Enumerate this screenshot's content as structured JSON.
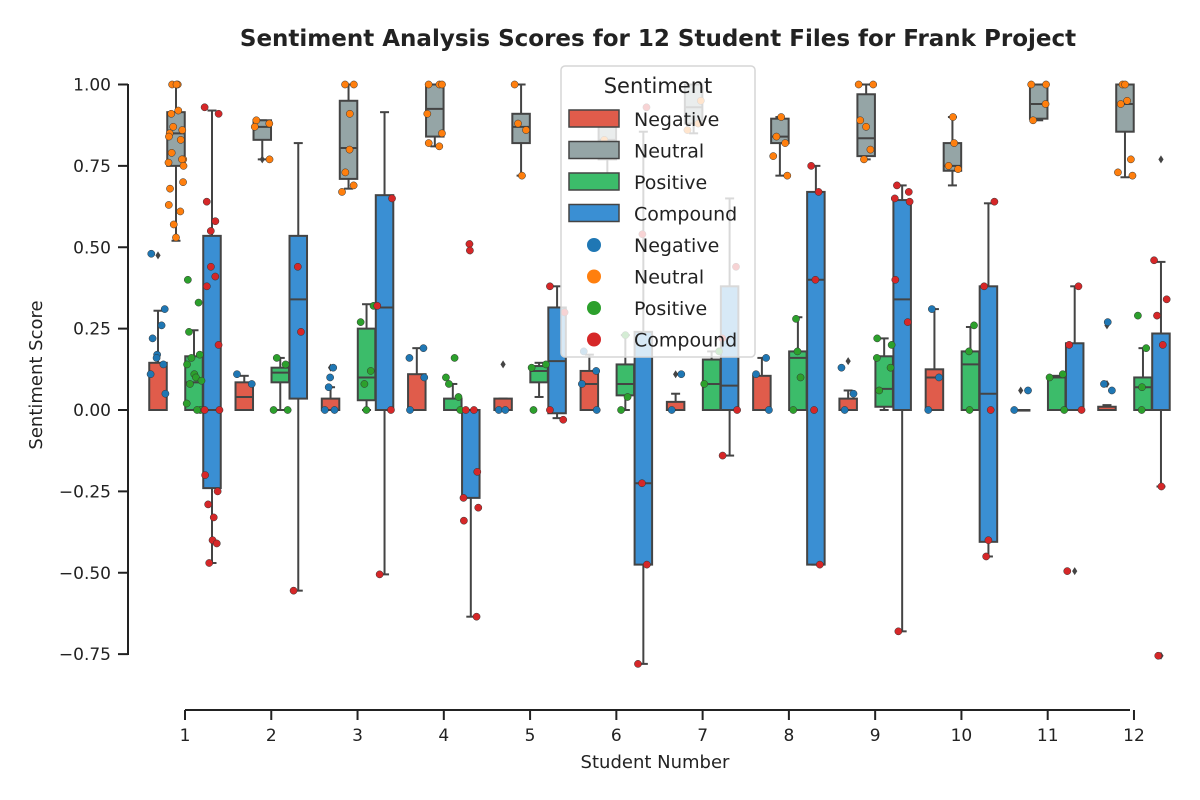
{
  "chart_data": {
    "type": "box",
    "title": "Sentiment Analysis Scores for 12 Student Files for Frank Project",
    "xlabel": "Student Number",
    "ylabel": "Sentiment Score",
    "categories": [
      "1",
      "2",
      "3",
      "4",
      "5",
      "6",
      "7",
      "8",
      "9",
      "10",
      "11",
      "12"
    ],
    "yticks": [
      "1.00",
      "0.75",
      "0.50",
      "0.25",
      "0.00",
      "−0.25",
      "−0.50",
      "−0.75"
    ],
    "ytick_values": [
      1.0,
      0.75,
      0.5,
      0.25,
      0.0,
      -0.25,
      -0.5,
      -0.75
    ],
    "ylim": [
      -0.92,
      1.08
    ],
    "grid": false,
    "legend": {
      "title": "Sentiment",
      "position": "top-center",
      "box_entries": [
        "Negative",
        "Neutral",
        "Positive",
        "Compound"
      ],
      "point_entries": [
        "Negative",
        "Neutral",
        "Positive",
        "Compound"
      ]
    },
    "box_colors": {
      "Negative": "#e05c4b",
      "Neutral": "#95a5a6",
      "Positive": "#3cbc6a",
      "Compound": "#3a8fd3"
    },
    "point_colors": {
      "Negative": "#1f77b4",
      "Neutral": "#ff7f0e",
      "Positive": "#2ca02c",
      "Compound": "#d62728"
    },
    "series": [
      {
        "name": "Negative",
        "boxes": [
          {
            "q1": 0,
            "med": 0,
            "q3": 0.145,
            "lo": 0,
            "hi": 0.305,
            "out": [
              0.475
            ]
          },
          {
            "q1": 0,
            "med": 0.04,
            "q3": 0.085,
            "lo": 0,
            "hi": 0.105,
            "out": []
          },
          {
            "q1": 0,
            "med": 0,
            "q3": 0.035,
            "lo": 0,
            "hi": 0.07,
            "out": [
              0.13
            ]
          },
          {
            "q1": 0,
            "med": 0,
            "q3": 0.11,
            "lo": 0,
            "hi": 0.19,
            "out": []
          },
          {
            "q1": 0,
            "med": 0,
            "q3": 0.035,
            "lo": 0,
            "hi": 0.035,
            "out": [
              0.14
            ]
          },
          {
            "q1": 0,
            "med": 0.08,
            "q3": 0.12,
            "lo": 0,
            "hi": 0.17,
            "out": []
          },
          {
            "q1": 0,
            "med": 0,
            "q3": 0.025,
            "lo": 0,
            "hi": 0.05,
            "out": [
              0.11
            ]
          },
          {
            "q1": 0,
            "med": 0,
            "q3": 0.105,
            "lo": 0,
            "hi": 0.16,
            "out": []
          },
          {
            "q1": 0,
            "med": 0,
            "q3": 0.035,
            "lo": 0,
            "hi": 0.06,
            "out": [
              0.15
            ]
          },
          {
            "q1": 0,
            "med": 0.1,
            "q3": 0.125,
            "lo": 0,
            "hi": 0.31,
            "out": []
          },
          {
            "q1": 0,
            "med": 0,
            "q3": 0,
            "lo": 0,
            "hi": 0,
            "out": [
              0.06
            ]
          },
          {
            "q1": 0,
            "med": 0,
            "q3": 0.01,
            "lo": 0,
            "hi": 0.015,
            "out": [
              0.26,
              0.08
            ]
          }
        ]
      },
      {
        "name": "Neutral",
        "boxes": [
          {
            "q1": 0.75,
            "med": 0.85,
            "q3": 0.915,
            "lo": 0.52,
            "hi": 1.0,
            "out": []
          },
          {
            "q1": 0.83,
            "med": 0.87,
            "q3": 0.89,
            "lo": 0.77,
            "hi": 0.89,
            "out": [
              0.77
            ]
          },
          {
            "q1": 0.71,
            "med": 0.805,
            "q3": 0.95,
            "lo": 0.68,
            "hi": 1.0,
            "out": []
          },
          {
            "q1": 0.84,
            "med": 0.925,
            "q3": 1.0,
            "lo": 0.81,
            "hi": 1.0,
            "out": []
          },
          {
            "q1": 0.82,
            "med": 0.87,
            "q3": 0.91,
            "lo": 0.72,
            "hi": 1.0,
            "out": []
          },
          {
            "q1": 0.77,
            "med": 0.83,
            "q3": 0.87,
            "lo": 0.72,
            "hi": 0.9,
            "out": []
          },
          {
            "q1": 0.88,
            "med": 0.93,
            "q3": 1.0,
            "lo": 0.85,
            "hi": 1.0,
            "out": []
          },
          {
            "q1": 0.82,
            "med": 0.84,
            "q3": 0.895,
            "lo": 0.72,
            "hi": 0.9,
            "out": []
          },
          {
            "q1": 0.78,
            "med": 0.835,
            "q3": 0.97,
            "lo": 0.77,
            "hi": 1.0,
            "out": []
          },
          {
            "q1": 0.735,
            "med": 0.75,
            "q3": 0.82,
            "lo": 0.69,
            "hi": 0.9,
            "out": []
          },
          {
            "q1": 0.895,
            "med": 0.94,
            "q3": 1.0,
            "lo": 0.89,
            "hi": 1.0,
            "out": []
          },
          {
            "q1": 0.855,
            "med": 0.94,
            "q3": 1.0,
            "lo": 0.715,
            "hi": 1.0,
            "out": []
          }
        ]
      },
      {
        "name": "Positive",
        "boxes": [
          {
            "q1": 0,
            "med": 0.085,
            "q3": 0.165,
            "lo": 0,
            "hi": 0.245,
            "out": []
          },
          {
            "q1": 0.085,
            "med": 0.115,
            "q3": 0.13,
            "lo": 0,
            "hi": 0.16,
            "out": []
          },
          {
            "q1": 0.03,
            "med": 0.1,
            "q3": 0.25,
            "lo": 0,
            "hi": 0.325,
            "out": []
          },
          {
            "q1": 0,
            "med": 0,
            "q3": 0.035,
            "lo": 0,
            "hi": 0.08,
            "out": []
          },
          {
            "q1": 0.085,
            "med": 0.12,
            "q3": 0.135,
            "lo": 0.04,
            "hi": 0.145,
            "out": []
          },
          {
            "q1": 0.045,
            "med": 0.08,
            "q3": 0.14,
            "lo": 0,
            "hi": 0.23,
            "out": []
          },
          {
            "q1": 0,
            "med": 0.08,
            "q3": 0.155,
            "lo": 0,
            "hi": 0.18,
            "out": []
          },
          {
            "q1": 0,
            "med": 0.16,
            "q3": 0.18,
            "lo": 0,
            "hi": 0.285,
            "out": []
          },
          {
            "q1": 0.01,
            "med": 0.065,
            "q3": 0.165,
            "lo": 0,
            "hi": 0.22,
            "out": []
          },
          {
            "q1": 0,
            "med": 0.14,
            "q3": 0.18,
            "lo": 0,
            "hi": 0.255,
            "out": []
          },
          {
            "q1": 0,
            "med": 0,
            "q3": 0.1,
            "lo": 0,
            "hi": 0.105,
            "out": []
          },
          {
            "q1": 0,
            "med": 0.07,
            "q3": 0.1,
            "lo": 0,
            "hi": 0.19,
            "out": []
          }
        ]
      },
      {
        "name": "Compound",
        "boxes": [
          {
            "q1": -0.24,
            "med": 0,
            "q3": 0.535,
            "lo": -0.47,
            "hi": 0.92,
            "out": []
          },
          {
            "q1": 0.035,
            "med": 0.34,
            "q3": 0.535,
            "lo": -0.555,
            "hi": 0.82,
            "out": []
          },
          {
            "q1": 0,
            "med": 0.315,
            "q3": 0.66,
            "lo": -0.505,
            "hi": 0.915,
            "out": []
          },
          {
            "q1": -0.27,
            "med": 0,
            "q3": 0,
            "lo": -0.635,
            "hi": 0,
            "out": [
              0.51,
              0.49
            ]
          },
          {
            "q1": -0.01,
            "med": 0.15,
            "q3": 0.315,
            "lo": -0.025,
            "hi": 0.38,
            "out": []
          },
          {
            "q1": -0.475,
            "med": -0.225,
            "q3": 0.24,
            "lo": -0.78,
            "hi": 0.855,
            "out": []
          },
          {
            "q1": 0,
            "med": 0.075,
            "q3": 0.38,
            "lo": -0.14,
            "hi": 0.65,
            "out": []
          },
          {
            "q1": -0.475,
            "med": 0.4,
            "q3": 0.67,
            "lo": -0.475,
            "hi": 0.75,
            "out": []
          },
          {
            "q1": 0,
            "med": 0.34,
            "q3": 0.645,
            "lo": -0.68,
            "hi": 0.69,
            "out": []
          },
          {
            "q1": -0.405,
            "med": 0.05,
            "q3": 0.38,
            "lo": -0.45,
            "hi": 0.635,
            "out": []
          },
          {
            "q1": 0,
            "med": 0,
            "q3": 0.205,
            "lo": 0,
            "hi": 0.38,
            "out": [
              -0.495
            ]
          },
          {
            "q1": 0,
            "med": 0,
            "q3": 0.235,
            "lo": -0.235,
            "hi": 0.455,
            "out": [
              0.77,
              -0.755
            ]
          }
        ]
      }
    ],
    "points": [
      {
        "cat": 0,
        "series": "Negative",
        "values": [
          0.17,
          0.16,
          0.26,
          0.22,
          0.31,
          0.11,
          0.05,
          0.48,
          0.14
        ]
      },
      {
        "cat": 0,
        "series": "Neutral",
        "values": [
          1.0,
          1.0,
          1.0,
          0.87,
          0.83,
          0.85,
          0.77,
          0.76,
          0.7,
          0.68,
          0.61,
          0.57,
          0.53,
          0.92,
          0.79,
          0.77,
          0.84,
          0.75,
          0.63,
          0.86,
          0.91
        ]
      },
      {
        "cat": 0,
        "series": "Positive",
        "values": [
          0.4,
          0.33,
          0.16,
          0.11,
          0.1,
          0.08,
          0.17,
          0.14,
          0.09,
          0.02,
          0.0,
          0.24,
          0.0
        ]
      },
      {
        "cat": 0,
        "series": "Compound",
        "values": [
          0.93,
          0.91,
          0.64,
          0.58,
          0.55,
          0.44,
          0.41,
          0.38,
          0.2,
          0.0,
          0.0,
          -0.2,
          -0.25,
          -0.29,
          -0.33,
          -0.4,
          -0.47,
          -0.41
        ]
      },
      {
        "cat": 1,
        "series": "Negative",
        "values": [
          0.11,
          0.08
        ]
      },
      {
        "cat": 1,
        "series": "Neutral",
        "values": [
          0.89,
          0.88,
          0.87,
          0.77
        ]
      },
      {
        "cat": 1,
        "series": "Positive",
        "values": [
          0.16,
          0.14,
          0.0,
          0.0
        ]
      },
      {
        "cat": 1,
        "series": "Compound",
        "values": [
          0.44,
          0.24,
          -0.555
        ]
      },
      {
        "cat": 2,
        "series": "Negative",
        "values": [
          0.13,
          0.1,
          0.07,
          0.0,
          0.0
        ]
      },
      {
        "cat": 2,
        "series": "Neutral",
        "values": [
          1.0,
          1.0,
          0.91,
          0.8,
          0.73,
          0.69,
          0.67
        ]
      },
      {
        "cat": 2,
        "series": "Positive",
        "values": [
          0.32,
          0.27,
          0.12,
          0.08,
          0.0
        ]
      },
      {
        "cat": 2,
        "series": "Compound",
        "values": [
          0.65,
          0.32,
          0.0,
          -0.505
        ]
      },
      {
        "cat": 3,
        "series": "Negative",
        "values": [
          0.19,
          0.16,
          0.1,
          0.0
        ]
      },
      {
        "cat": 3,
        "series": "Neutral",
        "values": [
          1.0,
          1.0,
          1.0,
          0.91,
          0.85,
          0.82,
          0.81
        ]
      },
      {
        "cat": 3,
        "series": "Positive",
        "values": [
          0.16,
          0.08,
          0.04,
          0.1,
          0.0
        ]
      },
      {
        "cat": 3,
        "series": "Compound",
        "values": [
          0.51,
          0.49,
          0.0,
          0.0,
          -0.19,
          -0.27,
          -0.3,
          -0.34,
          -0.635
        ]
      },
      {
        "cat": 4,
        "series": "Negative",
        "values": [
          0.0,
          0.0
        ]
      },
      {
        "cat": 4,
        "series": "Neutral",
        "values": [
          1.0,
          0.86,
          0.88,
          0.72
        ]
      },
      {
        "cat": 4,
        "series": "Positive",
        "values": [
          0.13,
          0.14,
          0.0
        ]
      },
      {
        "cat": 4,
        "series": "Compound",
        "values": [
          0.38,
          0.3,
          0.0,
          -0.03
        ]
      },
      {
        "cat": 5,
        "series": "Negative",
        "values": [
          0.18,
          0.12,
          0.08,
          0.0
        ]
      },
      {
        "cat": 5,
        "series": "Neutral",
        "values": [
          0.83,
          0.78
        ]
      },
      {
        "cat": 5,
        "series": "Positive",
        "values": [
          0.23,
          0.04,
          0.0
        ]
      },
      {
        "cat": 5,
        "series": "Compound",
        "values": [
          0.93,
          0.54,
          -0.225,
          -0.475,
          -0.78
        ]
      },
      {
        "cat": 6,
        "series": "Negative",
        "values": [
          0.11,
          0.0
        ]
      },
      {
        "cat": 6,
        "series": "Neutral",
        "values": [
          0.95,
          0.86,
          0.88
        ]
      },
      {
        "cat": 6,
        "series": "Positive",
        "values": [
          0.18,
          0.08
        ]
      },
      {
        "cat": 6,
        "series": "Compound",
        "values": [
          0.44,
          0.22,
          0.0,
          -0.14
        ]
      },
      {
        "cat": 7,
        "series": "Negative",
        "values": [
          0.16,
          0.11,
          0.0
        ]
      },
      {
        "cat": 7,
        "series": "Neutral",
        "values": [
          0.9,
          0.84,
          0.82,
          0.78,
          0.72
        ]
      },
      {
        "cat": 7,
        "series": "Positive",
        "values": [
          0.28,
          0.18,
          0.1,
          0.0
        ]
      },
      {
        "cat": 7,
        "series": "Compound",
        "values": [
          0.75,
          0.67,
          0.4,
          0.0,
          -0.475
        ]
      },
      {
        "cat": 8,
        "series": "Negative",
        "values": [
          0.13,
          0.05,
          0.0
        ]
      },
      {
        "cat": 8,
        "series": "Neutral",
        "values": [
          1.0,
          1.0,
          0.89,
          0.8,
          0.77,
          0.87
        ]
      },
      {
        "cat": 8,
        "series": "Positive",
        "values": [
          0.22,
          0.2,
          0.16,
          0.13,
          0.06
        ]
      },
      {
        "cat": 8,
        "series": "Compound",
        "values": [
          0.69,
          0.67,
          0.65,
          0.64,
          0.4,
          0.27,
          -0.68
        ]
      },
      {
        "cat": 9,
        "series": "Negative",
        "values": [
          0.31,
          0.1,
          0.0
        ]
      },
      {
        "cat": 9,
        "series": "Neutral",
        "values": [
          0.9,
          0.82,
          0.75,
          0.74
        ]
      },
      {
        "cat": 9,
        "series": "Positive",
        "values": [
          0.26,
          0.18,
          0.0
        ]
      },
      {
        "cat": 9,
        "series": "Compound",
        "values": [
          0.64,
          0.38,
          0.0,
          -0.4,
          -0.45
        ]
      },
      {
        "cat": 10,
        "series": "Negative",
        "values": [
          0.06,
          0.0
        ]
      },
      {
        "cat": 10,
        "series": "Neutral",
        "values": [
          1.0,
          1.0,
          0.94,
          0.89
        ]
      },
      {
        "cat": 10,
        "series": "Positive",
        "values": [
          0.11,
          0.1,
          0.0
        ]
      },
      {
        "cat": 10,
        "series": "Compound",
        "values": [
          0.38,
          0.2,
          0.0,
          -0.495
        ]
      },
      {
        "cat": 11,
        "series": "Negative",
        "values": [
          0.27,
          0.08,
          0.06
        ]
      },
      {
        "cat": 11,
        "series": "Neutral",
        "values": [
          1.0,
          1.0,
          0.95,
          0.94,
          0.77,
          0.73,
          0.72
        ]
      },
      {
        "cat": 11,
        "series": "Positive",
        "values": [
          0.29,
          0.19,
          0.07,
          0.0
        ]
      },
      {
        "cat": 11,
        "series": "Compound",
        "values": [
          0.46,
          0.34,
          0.29,
          0.2,
          -0.235,
          -0.755
        ]
      }
    ]
  }
}
